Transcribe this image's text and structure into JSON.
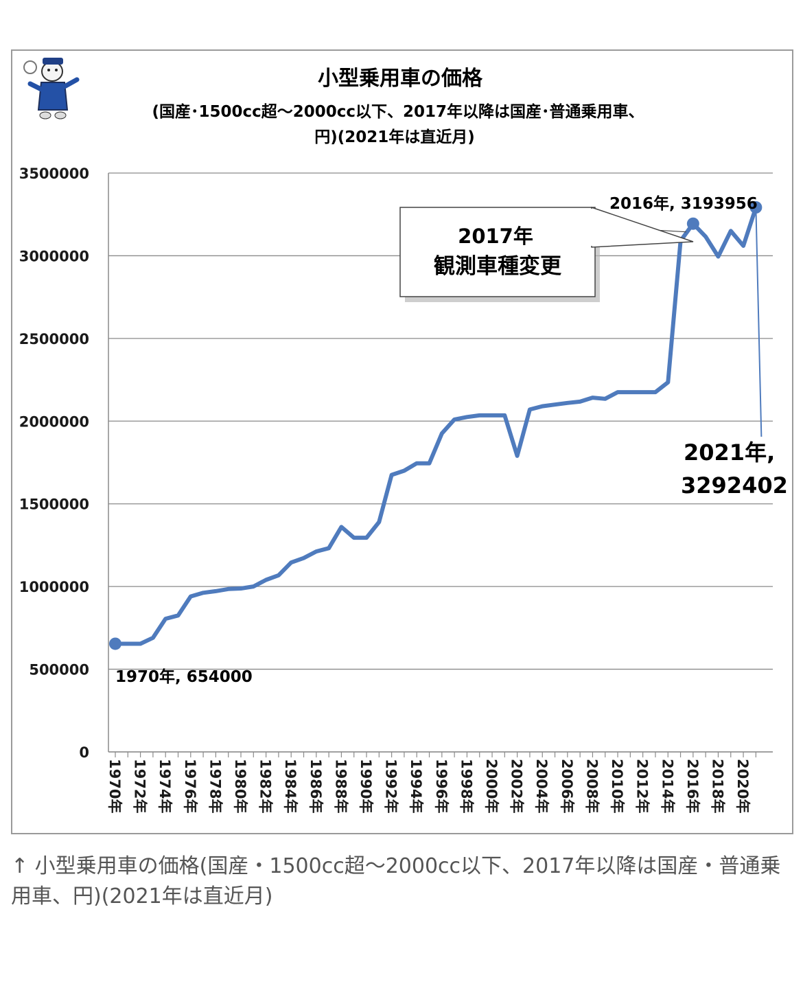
{
  "chart_data": {
    "type": "line",
    "title": "小型乗用車の価格",
    "subtitle_line1": "(国産･1500cc超～2000cc以下、2017年以降は国産･普通乗用車、",
    "subtitle_line2": "円)(2021年は直近月)",
    "ylim": [
      0,
      3500000
    ],
    "y_ticks": [
      "0",
      "500000",
      "1000000",
      "1500000",
      "2000000",
      "2500000",
      "3000000",
      "3500000"
    ],
    "x_tick_labels": [
      "1970年",
      "1972年",
      "1974年",
      "1976年",
      "1978年",
      "1980年",
      "1982年",
      "1984年",
      "1986年",
      "1988年",
      "1990年",
      "1992年",
      "1994年",
      "1996年",
      "1998年",
      "2000年",
      "2002年",
      "2004年",
      "2006年",
      "2008年",
      "2010年",
      "2012年",
      "2014年",
      "2016年",
      "2018年",
      "2020年"
    ],
    "grid": true,
    "series": [
      {
        "color": "#4f7bbd",
        "x": [
          1970,
          1971,
          1972,
          1973,
          1974,
          1975,
          1976,
          1977,
          1978,
          1979,
          1980,
          1981,
          1982,
          1983,
          1984,
          1985,
          1986,
          1987,
          1988,
          1989,
          1990,
          1991,
          1992,
          1993,
          1994,
          1995,
          1996,
          1997,
          1998,
          1999,
          2000,
          2001,
          2002,
          2003,
          2004,
          2005,
          2006,
          2007,
          2008,
          2009,
          2010,
          2011,
          2012,
          2013,
          2014,
          2015,
          2016,
          2017,
          2018,
          2019,
          2020,
          2021
        ],
        "values": [
          654000,
          654000,
          654000,
          690000,
          805000,
          825000,
          940000,
          962000,
          972000,
          985000,
          988000,
          1000000,
          1040000,
          1068000,
          1145000,
          1172000,
          1212000,
          1232000,
          1360000,
          1295000,
          1295000,
          1390000,
          1675000,
          1700000,
          1745000,
          1745000,
          1925000,
          2010000,
          2025000,
          2035000,
          2035000,
          2035000,
          1790000,
          2070000,
          2090000,
          2100000,
          2110000,
          2118000,
          2142000,
          2135000,
          2175000,
          2175000,
          2175000,
          2175000,
          2235000,
          3090000,
          3193956,
          3115000,
          2995000,
          3150000,
          3060000,
          3292402
        ]
      }
    ],
    "annotations": {
      "first_point": "1970年, 654000",
      "peak_2016": "2016年, 3193956",
      "box_line1": "2017年",
      "box_line2": "観測車種変更",
      "last_line1": "2021年,",
      "last_line2": "3292402"
    }
  },
  "caption": "↑ 小型乗用車の価格(国産・1500cc超～2000cc以下、2017年以降は国産・普通乗用車、円)(2021年は直近月)"
}
